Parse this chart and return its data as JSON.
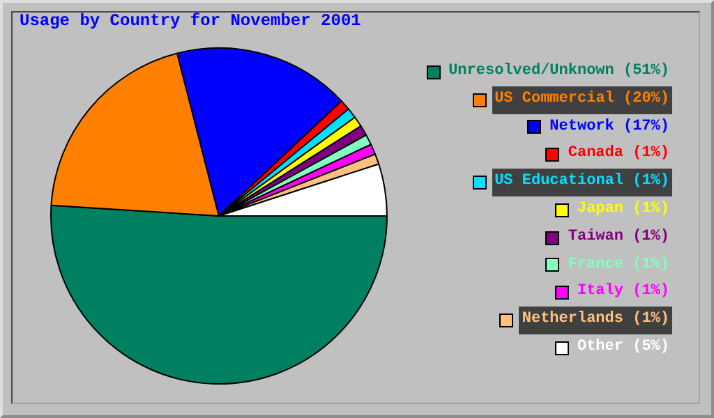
{
  "chart_data": {
    "type": "pie",
    "title": "Usage by Country for November 2001",
    "categories": [
      "Unresolved/Unknown",
      "US Commercial",
      "Network",
      "Canada",
      "US Educational",
      "Japan",
      "Taiwan",
      "France",
      "Italy",
      "Netherlands",
      "Other"
    ],
    "values": [
      51,
      20,
      17,
      1,
      1,
      1,
      1,
      1,
      1,
      1,
      5
    ],
    "colors": [
      "#008060",
      "#ff8000",
      "#0000ff",
      "#ff0000",
      "#00e0ff",
      "#ffff00",
      "#800080",
      "#80ffc0",
      "#ff00ff",
      "#ffc080",
      "#ffffff"
    ],
    "value_labels": [
      "(51%)",
      "(20%)",
      "(17%)",
      "(1%)",
      "(1%)",
      "(1%)",
      "(1%)",
      "(1%)",
      "(1%)",
      "(1%)",
      "(5%)"
    ],
    "legend": "right"
  }
}
